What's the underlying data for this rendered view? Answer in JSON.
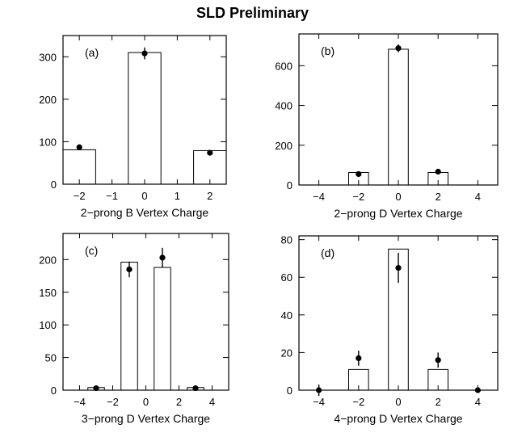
{
  "figure": {
    "title": "SLD Preliminary"
  },
  "chart_data": [
    {
      "type": "bar",
      "panel_label": "(a)",
      "xlabel": "2-prong B Vertex Charge",
      "xlim": [
        -2.5,
        2.5
      ],
      "xticks": [
        -2,
        -1,
        0,
        1,
        2
      ],
      "ylim": [
        0,
        350
      ],
      "yticks": [
        0,
        100,
        200,
        300
      ],
      "bar_width": 1,
      "histogram": {
        "x": [
          -2,
          0,
          2
        ],
        "values": [
          81,
          310,
          79
        ]
      },
      "data_points": {
        "x": [
          -2,
          0,
          2
        ],
        "y": [
          87,
          308,
          74
        ],
        "err": [
          5,
          14,
          4
        ]
      }
    },
    {
      "type": "bar",
      "panel_label": "(b)",
      "xlabel": "2-prong D Vertex Charge",
      "xlim": [
        -5,
        5
      ],
      "xticks": [
        -4,
        -2,
        0,
        2,
        4
      ],
      "ylim": [
        0,
        760
      ],
      "yticks": [
        0,
        200,
        400,
        600
      ],
      "bar_width": 1,
      "histogram": {
        "x": [
          -2,
          0,
          2
        ],
        "values": [
          63,
          683,
          63
        ]
      },
      "data_points": {
        "x": [
          -2,
          0,
          2
        ],
        "y": [
          55,
          688,
          67
        ],
        "err": [
          5,
          20,
          5
        ]
      }
    },
    {
      "type": "bar",
      "panel_label": "(c)",
      "xlabel": "3-prong D Vertex Charge",
      "xlim": [
        -5,
        5
      ],
      "xticks": [
        -4,
        -2,
        0,
        2,
        4
      ],
      "ylim": [
        0,
        240
      ],
      "yticks": [
        0,
        50,
        100,
        150,
        200
      ],
      "bar_width": 1,
      "histogram": {
        "x": [
          -3,
          -1,
          1,
          3
        ],
        "values": [
          4,
          196,
          188,
          4
        ]
      },
      "data_points": {
        "x": [
          -3,
          -1,
          1,
          3
        ],
        "y": [
          3,
          185,
          203,
          3
        ],
        "err": [
          1,
          12,
          15,
          1
        ]
      }
    },
    {
      "type": "bar",
      "panel_label": "(d)",
      "xlabel": "4-prong D Vertex Charge",
      "xlim": [
        -5,
        5
      ],
      "xticks": [
        -4,
        -2,
        0,
        2,
        4
      ],
      "ylim": [
        0,
        82
      ],
      "yticks": [
        0,
        20,
        40,
        60,
        80
      ],
      "bar_width": 1,
      "histogram": {
        "x": [
          -2,
          0,
          2
        ],
        "values": [
          11,
          75,
          11
        ]
      },
      "data_points": {
        "x": [
          -4,
          -2,
          0,
          2,
          4
        ],
        "y": [
          0,
          17,
          65,
          16,
          0
        ],
        "err": [
          3,
          4,
          8,
          4,
          0
        ]
      }
    }
  ]
}
